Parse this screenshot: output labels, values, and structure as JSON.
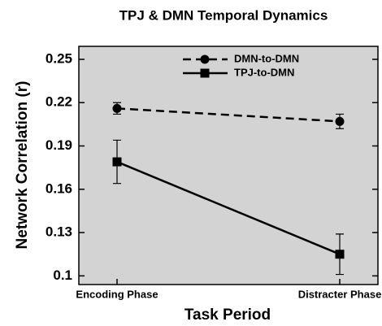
{
  "chart_data": {
    "type": "line",
    "title": "TPJ & DMN Temporal Dynamics",
    "x_label": "Task Period",
    "y_label": "Network Correlation (r)",
    "categories": [
      "Encoding Phase",
      "Distracter Phase"
    ],
    "series": [
      {
        "name": "DMN-to-DMN",
        "color": "#000000",
        "line_style": "dashed",
        "marker": "circle",
        "values": [
          0.216,
          0.207
        ],
        "errors": [
          0.004,
          0.005
        ]
      },
      {
        "name": "TPJ-to-DMN",
        "color": "#000000",
        "line_style": "solid",
        "marker": "square",
        "values": [
          0.179,
          0.115
        ],
        "errors": [
          0.015,
          0.014
        ]
      }
    ],
    "ylim": [
      0.094,
      0.259
    ],
    "yticks": [
      0.1,
      0.13,
      0.16,
      0.19,
      0.22,
      0.25
    ],
    "background": "#d3d3d3",
    "legend": "top"
  }
}
